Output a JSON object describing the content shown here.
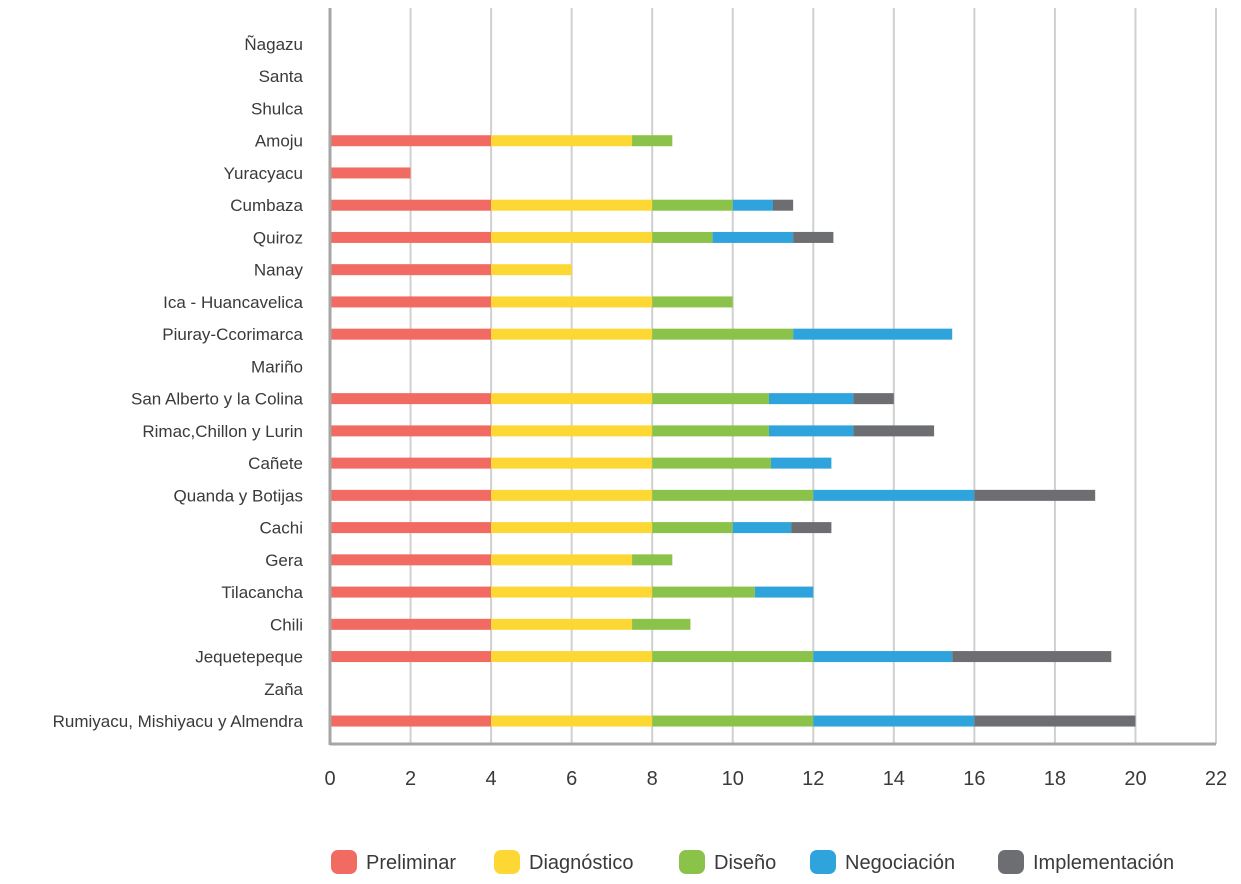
{
  "chart_data": {
    "type": "bar",
    "orientation": "horizontal",
    "stacked": true,
    "categories": [
      "Ñagazu",
      "Santa",
      "Shulca",
      "Amoju",
      "Yuracyacu",
      "Cumbaza",
      "Quiroz",
      "Nanay",
      "Ica - Huancavelica",
      "Piuray-Ccorimarca",
      "Mariño",
      "San Alberto y la Colina",
      "Rimac,Chillon y Lurin",
      "Cañete",
      "Quanda y Botijas",
      "Cachi",
      "Gera",
      "Tilacancha",
      "Chili",
      "Jequetepeque",
      "Zaña",
      "Rumiyacu, Mishiyacu y Almendra"
    ],
    "series": [
      {
        "name": "Preliminar",
        "color": "#f26b63",
        "values": [
          0,
          0,
          0,
          4,
          2,
          4,
          4,
          4,
          4,
          4,
          0,
          4,
          4,
          4,
          4,
          4,
          4,
          4,
          4,
          4,
          0,
          4
        ]
      },
      {
        "name": "Diagnóstico",
        "color": "#fdd835",
        "values": [
          0,
          0,
          0,
          3.5,
          0,
          4,
          4,
          2,
          4,
          4,
          0,
          4,
          4,
          4,
          4,
          4,
          3.5,
          4,
          3.5,
          4,
          0,
          4
        ]
      },
      {
        "name": "Diseño",
        "color": "#8bc34a",
        "values": [
          0,
          0,
          0,
          1,
          0,
          2,
          1.5,
          0,
          2,
          3.5,
          0,
          2.9,
          2.9,
          2.95,
          4,
          2,
          1,
          2.55,
          1.45,
          4,
          0,
          4
        ]
      },
      {
        "name": "Negociación",
        "color": "#2fa4dc",
        "values": [
          0,
          0,
          0,
          0,
          0,
          1,
          2,
          0,
          0,
          3.95,
          0,
          2.1,
          2.1,
          1.5,
          4,
          1.45,
          0,
          1.45,
          0,
          3.45,
          0,
          4
        ]
      },
      {
        "name": "Implementación",
        "color": "#6d6e71",
        "values": [
          0,
          0,
          0,
          0,
          0,
          0.5,
          1,
          0,
          0,
          0,
          0,
          1,
          2,
          0,
          3,
          1,
          0,
          0,
          0,
          3.95,
          0,
          4
        ]
      }
    ],
    "xlim": [
      0,
      22
    ],
    "xticks": [
      "0",
      "2",
      "4",
      "6",
      "8",
      "10",
      "12",
      "14",
      "16",
      "18",
      "20",
      "22"
    ],
    "grid": "vertical",
    "legend_position": "bottom",
    "title": "",
    "xlabel": "",
    "ylabel": ""
  }
}
